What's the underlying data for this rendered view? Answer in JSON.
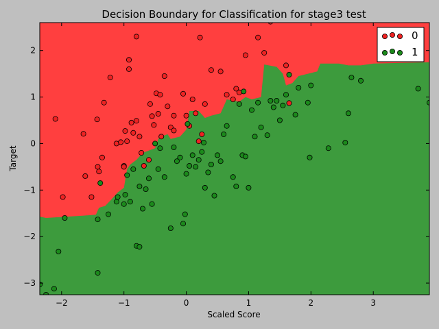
{
  "chart_data": {
    "type": "scatter",
    "title": "Decision Boundary for Classification for stage3 test",
    "xlabel": "Scaled Score",
    "ylabel": "Target",
    "xlim": [
      -2.35,
      3.9
    ],
    "ylim": [
      -3.25,
      2.6
    ],
    "xticks": [
      -2,
      -1,
      0,
      1,
      2,
      3
    ],
    "yticks": [
      -3,
      -2,
      -1,
      0,
      1,
      2
    ],
    "grid": false,
    "legend_position": "top-right",
    "colors": {
      "region_0": "#ff3f3f",
      "region_1": "#3d9b3d",
      "point_0": "#ee2222",
      "point_1": "#1b8a1b",
      "background": "#bfbfbf"
    },
    "boundary": [
      [
        -2.35,
        -1.57
      ],
      [
        -2.25,
        -1.6
      ],
      [
        -1.9,
        -1.57
      ],
      [
        -1.65,
        -1.55
      ],
      [
        -1.45,
        -1.53
      ],
      [
        -1.4,
        -1.38
      ],
      [
        -1.3,
        -1.34
      ],
      [
        -1.2,
        -1.2
      ],
      [
        -1.1,
        -1.05
      ],
      [
        -1.0,
        -0.95
      ],
      [
        -0.95,
        -0.55
      ],
      [
        -0.9,
        -0.45
      ],
      [
        -0.8,
        -0.35
      ],
      [
        -0.7,
        -0.2
      ],
      [
        -0.6,
        -0.15
      ],
      [
        -0.5,
        -0.1
      ],
      [
        -0.45,
        0.1
      ],
      [
        -0.4,
        0.15
      ],
      [
        -0.3,
        0.2
      ],
      [
        -0.25,
        0.1
      ],
      [
        -0.1,
        0.15
      ],
      [
        0.0,
        0.3
      ],
      [
        0.05,
        0.7
      ],
      [
        0.2,
        0.7
      ],
      [
        0.3,
        0.55
      ],
      [
        0.4,
        0.6
      ],
      [
        0.55,
        0.65
      ],
      [
        0.65,
        0.95
      ],
      [
        0.85,
        0.9
      ],
      [
        0.95,
        1.0
      ],
      [
        1.05,
        0.95
      ],
      [
        1.2,
        1.0
      ],
      [
        1.25,
        1.7
      ],
      [
        1.45,
        1.65
      ],
      [
        1.55,
        1.5
      ],
      [
        1.6,
        1.25
      ],
      [
        1.7,
        1.3
      ],
      [
        1.8,
        1.45
      ],
      [
        1.95,
        1.5
      ],
      [
        2.1,
        1.55
      ],
      [
        2.15,
        1.72
      ],
      [
        2.45,
        1.72
      ],
      [
        2.6,
        1.68
      ],
      [
        2.8,
        1.68
      ],
      [
        3.0,
        1.72
      ],
      [
        3.9,
        1.75
      ]
    ],
    "series": [
      {
        "name": "0",
        "color": "#ee2222",
        "points": [
          [
            -2.1,
            0.53
          ],
          [
            -1.98,
            -1.15
          ],
          [
            -1.65,
            0.21
          ],
          [
            -1.62,
            -0.7
          ],
          [
            -1.52,
            -1.15
          ],
          [
            -1.43,
            0.52
          ],
          [
            -1.42,
            -0.5
          ],
          [
            -1.4,
            -0.6
          ],
          [
            -1.35,
            -0.3
          ],
          [
            -1.32,
            0.88
          ],
          [
            -1.22,
            1.42
          ],
          [
            -1.12,
            0.0
          ],
          [
            -1.05,
            0.03
          ],
          [
            -1.0,
            -0.48
          ],
          [
            -0.98,
            0.27
          ],
          [
            -0.95,
            0.05
          ],
          [
            -0.92,
            1.6
          ],
          [
            -0.88,
            0.45
          ],
          [
            -0.85,
            0.23
          ],
          [
            -0.8,
            0.49
          ],
          [
            -0.75,
            0.15
          ],
          [
            -0.72,
            -0.2
          ],
          [
            -0.68,
            -0.48
          ],
          [
            -0.6,
            -0.35
          ],
          [
            -0.58,
            0.85
          ],
          [
            -0.55,
            0.59
          ],
          [
            -0.52,
            0.4
          ],
          [
            -0.48,
            1.08
          ],
          [
            -0.45,
            0.64
          ],
          [
            -0.42,
            1.05
          ],
          [
            -0.4,
            0.15
          ],
          [
            -0.35,
            1.45
          ],
          [
            -0.3,
            0.8
          ],
          [
            -0.25,
            0.35
          ],
          [
            -0.2,
            0.6
          ],
          [
            -0.05,
            1.07
          ],
          [
            0.0,
            0.6
          ],
          [
            0.05,
            0.38
          ],
          [
            0.1,
            0.95
          ],
          [
            0.15,
            0.65
          ],
          [
            0.2,
            0.05
          ],
          [
            0.25,
            0.2
          ],
          [
            0.3,
            0.85
          ],
          [
            0.4,
            1.58
          ],
          [
            0.55,
            1.55
          ],
          [
            0.65,
            1.05
          ],
          [
            0.75,
            0.95
          ],
          [
            0.8,
            1.18
          ],
          [
            0.85,
            1.1
          ],
          [
            0.95,
            1.9
          ],
          [
            1.15,
            2.28
          ],
          [
            1.25,
            1.95
          ],
          [
            1.35,
            2.62
          ],
          [
            1.6,
            1.68
          ],
          [
            1.65,
            0.87
          ],
          [
            -0.8,
            2.3
          ],
          [
            0.22,
            2.28
          ],
          [
            -0.92,
            1.8
          ],
          [
            -1.0,
            -0.5
          ],
          [
            -0.2,
            0.28
          ]
        ]
      },
      {
        "name": "1",
        "color": "#1b8a1b",
        "points": [
          [
            -2.35,
            -3.03
          ],
          [
            -2.25,
            -3.25
          ],
          [
            -2.12,
            -3.12
          ],
          [
            -2.05,
            -2.32
          ],
          [
            -1.95,
            -1.6
          ],
          [
            -1.42,
            -2.78
          ],
          [
            -1.42,
            -1.63
          ],
          [
            -1.38,
            -0.85
          ],
          [
            -1.25,
            -1.52
          ],
          [
            -1.12,
            -1.25
          ],
          [
            -1.1,
            -1.15
          ],
          [
            -0.98,
            -1.1
          ],
          [
            -0.95,
            -0.68
          ],
          [
            -0.9,
            -1.25
          ],
          [
            -0.85,
            -0.55
          ],
          [
            -0.8,
            -2.2
          ],
          [
            -0.75,
            -2.22
          ],
          [
            -0.75,
            -0.92
          ],
          [
            -0.7,
            -1.4
          ],
          [
            -0.65,
            -0.98
          ],
          [
            -0.6,
            -0.75
          ],
          [
            -0.55,
            -1.3
          ],
          [
            -0.5,
            0.0
          ],
          [
            -0.45,
            -0.55
          ],
          [
            -0.35,
            -0.72
          ],
          [
            -0.25,
            -1.82
          ],
          [
            -0.2,
            -0.08
          ],
          [
            -0.15,
            -0.38
          ],
          [
            -0.1,
            -0.3
          ],
          [
            -0.05,
            -1.72
          ],
          [
            -0.02,
            -1.52
          ],
          [
            0.0,
            -0.65
          ],
          [
            0.05,
            -0.48
          ],
          [
            0.1,
            -0.25
          ],
          [
            0.15,
            -0.5
          ],
          [
            0.2,
            -0.35
          ],
          [
            0.25,
            -0.18
          ],
          [
            0.3,
            -0.95
          ],
          [
            0.35,
            -0.62
          ],
          [
            0.4,
            -0.45
          ],
          [
            0.45,
            -1.12
          ],
          [
            0.5,
            -0.25
          ],
          [
            0.55,
            -0.38
          ],
          [
            0.6,
            0.2
          ],
          [
            0.65,
            0.38
          ],
          [
            0.75,
            -0.72
          ],
          [
            0.8,
            -0.92
          ],
          [
            0.85,
            0.85
          ],
          [
            0.9,
            -0.25
          ],
          [
            0.95,
            -0.28
          ],
          [
            1.0,
            -0.95
          ],
          [
            1.05,
            0.72
          ],
          [
            1.1,
            0.15
          ],
          [
            1.15,
            0.88
          ],
          [
            1.2,
            0.35
          ],
          [
            1.3,
            0.18
          ],
          [
            1.35,
            0.92
          ],
          [
            1.4,
            0.78
          ],
          [
            1.45,
            0.92
          ],
          [
            1.5,
            0.5
          ],
          [
            1.55,
            0.82
          ],
          [
            1.6,
            1.05
          ],
          [
            1.65,
            1.48
          ],
          [
            1.75,
            0.62
          ],
          [
            1.8,
            1.2
          ],
          [
            1.95,
            0.88
          ],
          [
            2.0,
            1.25
          ],
          [
            1.98,
            -0.3
          ],
          [
            2.28,
            -0.1
          ],
          [
            2.55,
            0.02
          ],
          [
            2.6,
            0.65
          ],
          [
            2.65,
            1.42
          ],
          [
            2.8,
            1.35
          ],
          [
            3.72,
            1.18
          ],
          [
            3.9,
            0.88
          ],
          [
            0.02,
            0.42
          ],
          [
            0.28,
            0.02
          ],
          [
            0.92,
            1.12
          ],
          [
            -0.42,
            -0.1
          ],
          [
            -1.0,
            -1.3
          ]
        ]
      }
    ]
  }
}
